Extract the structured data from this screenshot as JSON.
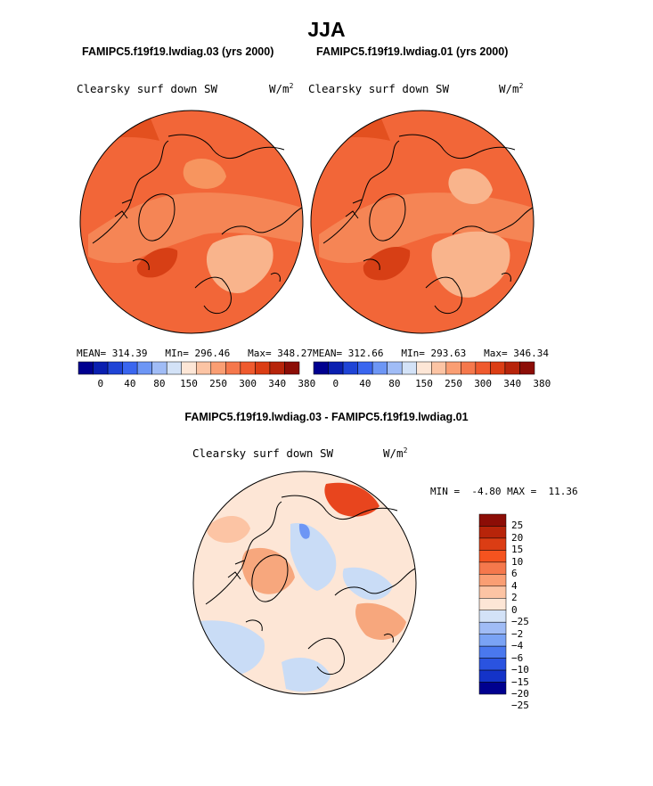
{
  "title": "JJA",
  "panels": [
    {
      "case_title": "FAMIPC5.f19f19.lwdiag.03 (yrs 2000)",
      "variable": "Clearsky surf down SW",
      "units_base": "W/m",
      "units_exp": "2",
      "stats": {
        "mean_label": "MEAN=",
        "mean": "314.39",
        "min_label": "MIn=",
        "min": "296.46",
        "max_label": "Max=",
        "max": "348.27"
      }
    },
    {
      "case_title": "FAMIPC5.f19f19.lwdiag.01 (yrs 2000)",
      "variable": "Clearsky surf down SW",
      "units_base": "W/m",
      "units_exp": "2",
      "stats": {
        "mean_label": "MEAN=",
        "mean": "312.66",
        "min_label": "MIn=",
        "min": "293.63",
        "max_label": "Max=",
        "max": "346.34"
      }
    }
  ],
  "abs_colorbar": {
    "colors": [
      "#00008f",
      "#0a1fb0",
      "#1f44d6",
      "#3a66ef",
      "#6d96f5",
      "#a0bcf6",
      "#d3e2f7",
      "#fde6d6",
      "#fcc4a4",
      "#fa9e73",
      "#f5784c",
      "#ef5a2e",
      "#db3d14",
      "#b7240a",
      "#8c0d06"
    ],
    "labels": [
      "0",
      "40",
      "80",
      "150",
      "250",
      "300",
      "340",
      "380"
    ]
  },
  "diff_panel": {
    "title": "FAMIPC5.f19f19.lwdiag.03 - FAMIPC5.f19f19.lwdiag.01",
    "variable": "Clearsky surf down SW",
    "units_base": "W/m",
    "units_exp": "2",
    "min_label": "MIN =",
    "min": "-4.80",
    "max_label": "MAX =",
    "max": "11.36"
  },
  "diff_colorbar": {
    "colors": [
      "#8c0d06",
      "#b7240a",
      "#db3d14",
      "#f5531f",
      "#f5784c",
      "#fa9e73",
      "#fcc4a4",
      "#fde6d6",
      "#d3e2f7",
      "#a0bcf6",
      "#7aa3f5",
      "#4a78ee",
      "#2a53e0",
      "#1433c8",
      "#00008f"
    ],
    "labels": [
      "25",
      "20",
      "15",
      "10",
      "6",
      "4",
      "2",
      "0",
      "−25",
      "−2",
      "−4",
      "−6",
      "−10",
      "−15",
      "−20",
      "−25"
    ]
  },
  "colors": {
    "abs_base": "#f26638",
    "abs_light": "#f7955f",
    "abs_dark": "#d73f15",
    "diff_neutral": "#fde6d6",
    "diff_blue": "#c9dcf6",
    "diff_orange": "#f7a77d",
    "diff_red": "#e8451e",
    "land": "#000000"
  }
}
